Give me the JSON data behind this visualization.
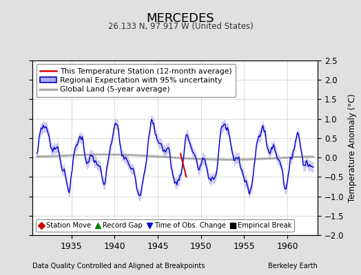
{
  "title": "MERCEDES",
  "subtitle": "26.133 N, 97.917 W (United States)",
  "ylabel": "Temperature Anomaly (°C)",
  "xlabel_left": "Data Quality Controlled and Aligned at Breakpoints",
  "xlabel_right": "Berkeley Earth",
  "ylim": [
    -2,
    2.5
  ],
  "yticks": [
    -2,
    -1.5,
    -1,
    -0.5,
    0,
    0.5,
    1,
    1.5,
    2,
    2.5
  ],
  "xlim": [
    1930.5,
    1963.5
  ],
  "xticks": [
    1935,
    1940,
    1945,
    1950,
    1955,
    1960
  ],
  "line_color_station": "#dd0000",
  "line_color_regional": "#0000cc",
  "fill_color_regional": "#aaaaee",
  "line_color_global": "#aaaaaa",
  "bg_color": "#e0e0e0",
  "plot_bg_color": "#ffffff",
  "legend_items": [
    {
      "label": "This Temperature Station (12-month average)",
      "color": "#dd0000",
      "lw": 1.5
    },
    {
      "label": "Regional Expectation with 95% uncertainty",
      "color": "#0000cc",
      "lw": 1.5
    },
    {
      "label": "Global Land (5-year average)",
      "color": "#aaaaaa",
      "lw": 2.5
    }
  ],
  "marker_legend": [
    {
      "label": "Station Move",
      "color": "#cc0000",
      "marker": "D"
    },
    {
      "label": "Record Gap",
      "color": "#008800",
      "marker": "^"
    },
    {
      "label": "Time of Obs. Change",
      "color": "#0000cc",
      "marker": "v"
    },
    {
      "label": "Empirical Break",
      "color": "#000000",
      "marker": "s"
    }
  ]
}
